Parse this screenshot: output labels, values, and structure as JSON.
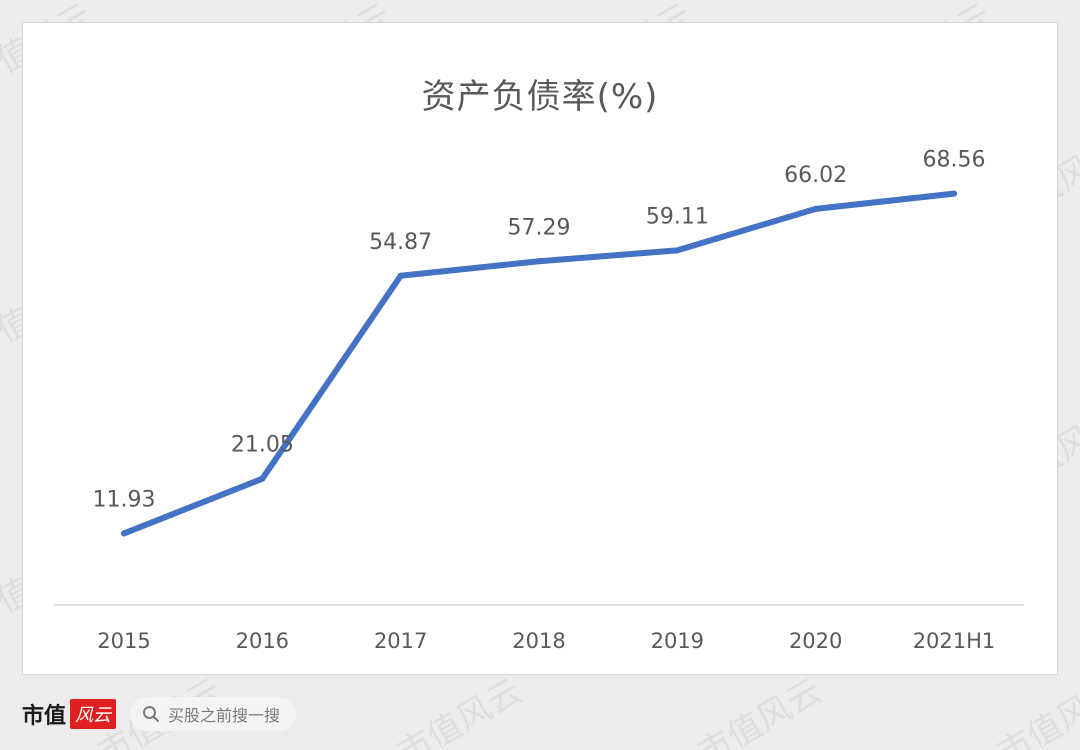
{
  "chart_data": {
    "type": "line",
    "title": "资产负债率(%)",
    "categories": [
      "2015",
      "2016",
      "2017",
      "2018",
      "2019",
      "2020",
      "2021H1"
    ],
    "series": [
      {
        "values": [
          11.93,
          21.05,
          54.87,
          57.29,
          59.11,
          66.02,
          68.56
        ],
        "labels": [
          "11.93",
          "21.05",
          "54.87",
          "57.29",
          "59.11",
          "66.02",
          "68.56"
        ],
        "color": "#4472c4"
      }
    ],
    "ylim": [
      0,
      80
    ],
    "grid": false,
    "data_labels": true
  },
  "watermark": "市值风云",
  "footer": {
    "brand_text": "市值",
    "brand_logo": "风云",
    "search_icon": "search-icon",
    "search_text": "买股之前搜一搜"
  },
  "colors": {
    "line": "#4472c4",
    "axis": "#d9d9d9",
    "text": "#595959"
  }
}
